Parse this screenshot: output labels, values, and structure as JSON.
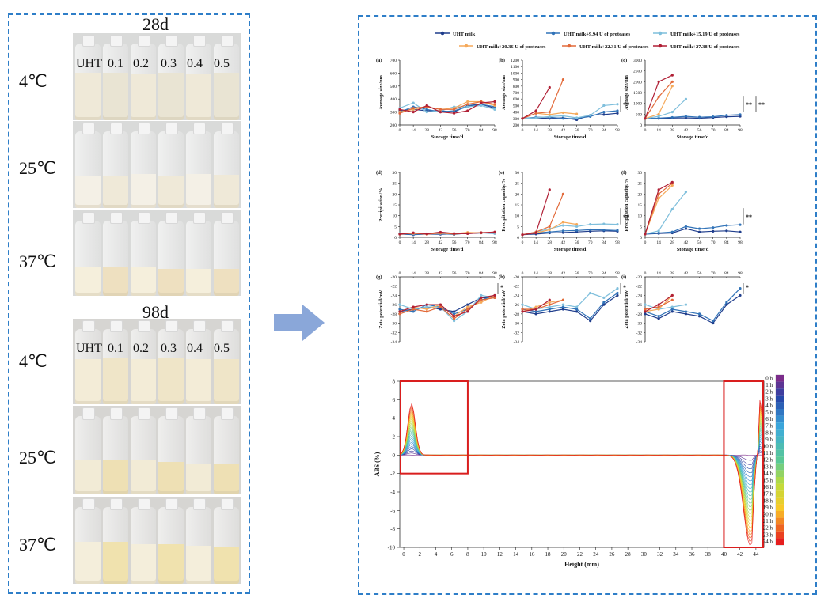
{
  "photos": {
    "day1": "28d",
    "day2": "98d",
    "sample_labels": [
      "UHT",
      "0.1",
      "0.2",
      "0.3",
      "0.4",
      "0.5"
    ],
    "temps": [
      "4℃",
      "25℃",
      "37℃"
    ]
  },
  "legend": [
    {
      "name": "UHT milk",
      "color": "#1f3d8c"
    },
    {
      "name": "UHT milk+9.94 U of proteases",
      "color": "#3173b8"
    },
    {
      "name": "UHT milk+15.19 U of proteases",
      "color": "#7fbfdc"
    },
    {
      "name": "UHT milk+20.36 U of proteases",
      "color": "#f5a95a"
    },
    {
      "name": "UHT milk+22.31 U of proteases",
      "color": "#e26a3a"
    },
    {
      "name": "UHT milk+27.38 U of proteases",
      "color": "#b01f35"
    }
  ],
  "chart_data": [
    {
      "id": "(a)",
      "type": "line",
      "xlabel": "Storage time/d",
      "ylabel": "Average size/nm",
      "x": [
        0,
        14,
        28,
        42,
        56,
        70,
        84,
        98
      ],
      "ylim": [
        200,
        700
      ],
      "yticks": [
        200,
        300,
        400,
        500,
        600,
        700
      ],
      "sig": "",
      "series": [
        [
          310,
          320,
          310,
          310,
          300,
          350,
          360,
          330
        ],
        [
          300,
          340,
          320,
          300,
          310,
          340,
          360,
          340
        ],
        [
          330,
          370,
          300,
          310,
          340,
          340,
          350,
          320
        ],
        [
          300,
          320,
          340,
          320,
          330,
          380,
          380,
          350
        ],
        [
          290,
          330,
          340,
          320,
          320,
          360,
          380,
          360
        ],
        [
          320,
          300,
          350,
          300,
          290,
          310,
          370,
          380
        ]
      ]
    },
    {
      "id": "(b)",
      "type": "line",
      "xlabel": "Storage time/d",
      "ylabel": "Average size/nm",
      "x": [
        0,
        14,
        28,
        42,
        56,
        70,
        84,
        98
      ],
      "ylim": [
        200,
        1200
      ],
      "yticks": [
        200,
        300,
        400,
        500,
        600,
        700,
        800,
        900,
        1000,
        1100,
        1200
      ],
      "sig": "**",
      "series": [
        [
          300,
          310,
          300,
          310,
          280,
          350,
          360,
          380
        ],
        [
          300,
          320,
          320,
          300,
          300,
          330,
          400,
          420
        ],
        [
          300,
          310,
          330,
          340,
          310,
          350,
          500,
          520
        ],
        [
          300,
          380,
          360,
          390,
          370,
          null,
          null,
          null
        ],
        [
          300,
          380,
          400,
          900,
          null,
          null,
          null,
          null
        ],
        [
          300,
          420,
          780,
          null,
          null,
          null,
          null,
          null
        ]
      ]
    },
    {
      "id": "(c)",
      "type": "line",
      "xlabel": "Storage time/d",
      "ylabel": "Average size/nm",
      "x": [
        0,
        14,
        28,
        42,
        56,
        70,
        84,
        98
      ],
      "ylim": [
        0,
        3000
      ],
      "yticks": [
        0,
        500,
        1000,
        1500,
        2000,
        2500,
        3000
      ],
      "sig": "** **",
      "series": [
        [
          300,
          300,
          320,
          330,
          310,
          340,
          380,
          400
        ],
        [
          300,
          320,
          350,
          400,
          360,
          380,
          450,
          480
        ],
        [
          300,
          400,
          600,
          1200,
          null,
          null,
          null,
          null
        ],
        [
          300,
          500,
          1800,
          null,
          null,
          null,
          null,
          null
        ],
        [
          300,
          1300,
          2000,
          null,
          null,
          null,
          null,
          null
        ],
        [
          300,
          2000,
          2300,
          null,
          null,
          null,
          null,
          null
        ]
      ]
    },
    {
      "id": "(d)",
      "type": "line",
      "xlabel": "Storage time/d",
      "ylabel": "Precipitation/%",
      "x": [
        0,
        14,
        28,
        42,
        56,
        70,
        84,
        98
      ],
      "ylim": [
        0,
        30
      ],
      "yticks": [
        0,
        5,
        10,
        15,
        20,
        25,
        30
      ],
      "sig": "",
      "series": [
        [
          1.5,
          1.2,
          1.5,
          1.4,
          1.6,
          1.8,
          2.0,
          2.2
        ],
        [
          1.5,
          1.4,
          1.5,
          1.7,
          1.3,
          2.0,
          2.1,
          1.8
        ],
        [
          1.8,
          1.6,
          1.7,
          1.8,
          1.6,
          2.1,
          2.2,
          1.9
        ],
        [
          1.6,
          1.8,
          1.6,
          1.9,
          1.7,
          2.3,
          2.0,
          2.4
        ],
        [
          1.4,
          1.9,
          1.4,
          2.0,
          1.5,
          1.9,
          2.2,
          2.3
        ],
        [
          1.5,
          2.1,
          1.6,
          2.4,
          1.8,
          1.7,
          2.1,
          2.5
        ]
      ]
    },
    {
      "id": "(e)",
      "type": "line",
      "xlabel": "Storage time/d",
      "ylabel": "Precipitation capacity/%",
      "x": [
        0,
        14,
        28,
        42,
        56,
        70,
        84,
        98
      ],
      "ylim": [
        0,
        30
      ],
      "yticks": [
        0,
        5,
        10,
        15,
        20,
        25,
        30
      ],
      "sig": "**",
      "series": [
        [
          1.2,
          1.5,
          2.0,
          2.2,
          2.5,
          2.8,
          3.0,
          2.8
        ],
        [
          1.2,
          2.0,
          2.5,
          3.0,
          3.2,
          3.5,
          3.4,
          3.2
        ],
        [
          1.2,
          2.5,
          4.0,
          5.5,
          5.0,
          6.0,
          6.2,
          6.0
        ],
        [
          1.2,
          2.0,
          3.5,
          7.0,
          6.0,
          null,
          null,
          null
        ],
        [
          1.2,
          2.5,
          5.0,
          20.0,
          null,
          null,
          null,
          null
        ],
        [
          1.2,
          2.0,
          22.0,
          null,
          null,
          null,
          null,
          null
        ]
      ]
    },
    {
      "id": "(f)",
      "type": "line",
      "xlabel": "Storage time/d",
      "ylabel": "Precipitation capacity/%",
      "x": [
        0,
        14,
        28,
        42,
        56,
        70,
        84,
        98
      ],
      "ylim": [
        0,
        30
      ],
      "yticks": [
        0,
        5,
        10,
        15,
        20,
        25,
        30
      ],
      "sig": "**",
      "series": [
        [
          1.5,
          1.8,
          2.0,
          4.0,
          2.5,
          2.8,
          3.0,
          2.5
        ],
        [
          1.5,
          2.0,
          2.5,
          5.0,
          4.0,
          4.5,
          5.5,
          5.8
        ],
        [
          1.5,
          3.0,
          13.0,
          21.0,
          null,
          null,
          null,
          null
        ],
        [
          1.5,
          18.0,
          24.0,
          null,
          null,
          null,
          null,
          null
        ],
        [
          1.5,
          20.0,
          25.0,
          null,
          null,
          null,
          null,
          null
        ],
        [
          1.5,
          22.0,
          25.5,
          null,
          null,
          null,
          null,
          null
        ]
      ]
    },
    {
      "id": "(g)",
      "type": "line",
      "xlabel": "",
      "ylabel": "Zeta potential/mV",
      "x": [
        0,
        14,
        28,
        42,
        56,
        70,
        84,
        98
      ],
      "ylim": [
        -34,
        -20
      ],
      "yticks": [
        -20,
        -22,
        -24,
        -26,
        -28,
        -30,
        -32,
        -34
      ],
      "sig": "*",
      "series": [
        [
          -27.5,
          -27.0,
          -26.5,
          -27.0,
          -27.5,
          -26.0,
          -24.5,
          -24.5
        ],
        [
          -27.0,
          -27.5,
          -26.0,
          -26.5,
          -28.0,
          -27.0,
          -25.0,
          -24.0
        ],
        [
          -26.0,
          -27.0,
          -26.5,
          -26.5,
          -29.5,
          -27.5,
          -24.0,
          -24.5
        ],
        [
          -27.5,
          -26.5,
          -27.0,
          -26.0,
          -28.5,
          -26.5,
          -25.5,
          -24.0
        ],
        [
          -28.0,
          -27.0,
          -27.5,
          -26.5,
          -29.0,
          -27.0,
          -25.0,
          -24.5
        ],
        [
          -27.5,
          -26.5,
          -26.0,
          -26.0,
          -28.5,
          -27.5,
          -24.5,
          -24.0
        ]
      ]
    },
    {
      "id": "(h)",
      "type": "line",
      "xlabel": "",
      "ylabel": "Zeta potential/mV",
      "x": [
        0,
        14,
        28,
        42,
        56,
        70,
        84,
        98
      ],
      "ylim": [
        -34,
        -20
      ],
      "yticks": [
        -20,
        -22,
        -24,
        -26,
        -28,
        -30,
        -32,
        -34
      ],
      "sig": "*",
      "series": [
        [
          -27.5,
          -28.0,
          -27.5,
          -27.0,
          -27.5,
          -29.5,
          -26.0,
          -24.0
        ],
        [
          -27.0,
          -27.5,
          -27.0,
          -26.5,
          -27.0,
          -29.0,
          -25.5,
          -23.5
        ],
        [
          -26.0,
          -27.0,
          -26.5,
          -26.0,
          -26.5,
          -23.5,
          -24.5,
          -22.5
        ],
        [
          -27.5,
          -26.5,
          -25.5,
          -25.0,
          null,
          null,
          null,
          null
        ],
        [
          -27.0,
          -27.0,
          -26.0,
          -25.0,
          null,
          null,
          null,
          null
        ],
        [
          -27.5,
          -27.0,
          -25.0,
          null,
          null,
          null,
          null,
          null
        ]
      ]
    },
    {
      "id": "(i)",
      "type": "line",
      "xlabel": "",
      "ylabel": "Zeta potential/mV",
      "x": [
        0,
        14,
        28,
        42,
        56,
        70,
        84,
        98
      ],
      "ylim": [
        -34,
        -20
      ],
      "yticks": [
        -20,
        -22,
        -24,
        -26,
        -28,
        -30,
        -32,
        -34
      ],
      "sig": "*",
      "series": [
        [
          -28.0,
          -29.0,
          -27.5,
          -28.0,
          -28.5,
          -30.0,
          -26.0,
          -24.0
        ],
        [
          -27.5,
          -28.5,
          -27.0,
          -27.5,
          -28.0,
          -29.5,
          -25.5,
          -22.5
        ],
        [
          -26.0,
          -27.0,
          -26.5,
          -26.0,
          null,
          null,
          null,
          null
        ],
        [
          -27.5,
          -27.0,
          -24.0,
          null,
          null,
          null,
          null,
          null
        ],
        [
          -27.0,
          -26.5,
          -25.0,
          null,
          null,
          null,
          null,
          null
        ],
        [
          -27.5,
          -26.0,
          -24.0,
          null,
          null,
          null,
          null,
          null
        ]
      ]
    },
    {
      "id": "lumi",
      "type": "line",
      "xlabel": "Height (mm)",
      "ylabel": "ABS (%)",
      "xlim": [
        -0.5,
        45
      ],
      "xticks": [
        0,
        2,
        4,
        6,
        8,
        10,
        12,
        14,
        16,
        18,
        20,
        22,
        24,
        26,
        28,
        30,
        32,
        34,
        36,
        38,
        40,
        42,
        44
      ],
      "ylim": [
        -10,
        8
      ],
      "yticks": [
        8,
        6,
        4,
        2,
        0,
        -2,
        -4,
        -6,
        -8,
        -10
      ],
      "legend_hours": [
        "0 h",
        "1 h",
        "2 h",
        "3 h",
        "4 h",
        "5 h",
        "6 h",
        "7 h",
        "8 h",
        "9 h",
        "10 h",
        "11 h",
        "12 h",
        "13 h",
        "14 h",
        "15 h",
        "16 h",
        "17 h",
        "18 h",
        "19 h",
        "20 h",
        "21 h",
        "22 h",
        "23 h",
        "24 h"
      ],
      "peak_left": 5.6,
      "trough_right": -9.8
    }
  ]
}
